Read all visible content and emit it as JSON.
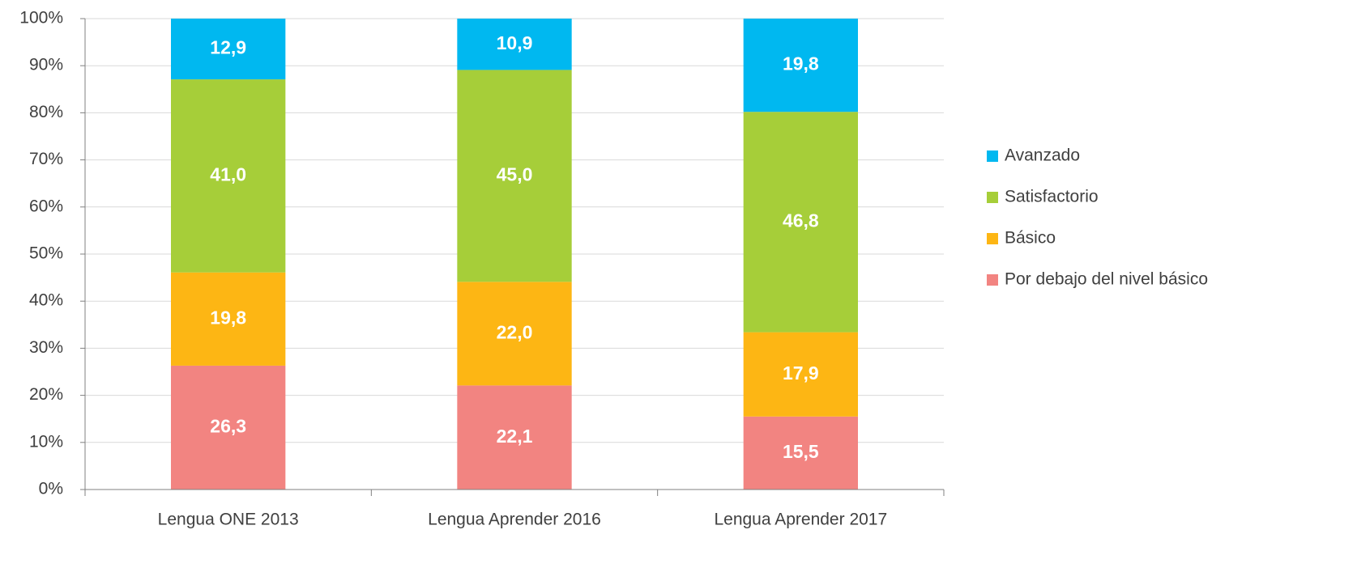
{
  "chart_data": {
    "type": "stacked_bar",
    "categories": [
      "Lengua ONE 2013",
      "Lengua Aprender 2016",
      "Lengua Aprender 2017"
    ],
    "series": [
      {
        "name": "Avanzado",
        "color": "#00b8f0",
        "values": [
          12.9,
          10.9,
          19.8
        ],
        "value_labels": [
          "12,9",
          "10,9",
          "19,8"
        ]
      },
      {
        "name": "Satisfactorio",
        "color": "#a6ce39",
        "values": [
          41.0,
          45.0,
          46.8
        ],
        "value_labels": [
          "41,0",
          "45,0",
          "46,8"
        ]
      },
      {
        "name": "Básico",
        "color": "#fdb614",
        "values": [
          19.8,
          22.0,
          17.9
        ],
        "value_labels": [
          "19,8",
          "22,0",
          "17,9"
        ]
      },
      {
        "name": "Por debajo del nivel básico",
        "color": "#f28481",
        "values": [
          26.3,
          22.1,
          15.5
        ],
        "value_labels": [
          "26,3",
          "22,1",
          "15,5"
        ]
      }
    ],
    "ylim": [
      0,
      100
    ],
    "yticks": [
      {
        "value": 0,
        "label": "0%"
      },
      {
        "value": 10,
        "label": "10%"
      },
      {
        "value": 20,
        "label": "20%"
      },
      {
        "value": 30,
        "label": "30%"
      },
      {
        "value": 40,
        "label": "40%"
      },
      {
        "value": 50,
        "label": "50%"
      },
      {
        "value": 60,
        "label": "60%"
      },
      {
        "value": 70,
        "label": "70%"
      },
      {
        "value": 80,
        "label": "80%"
      },
      {
        "value": 90,
        "label": "90%"
      },
      {
        "value": 100,
        "label": "100%"
      }
    ],
    "grid": true,
    "legend": "right"
  }
}
